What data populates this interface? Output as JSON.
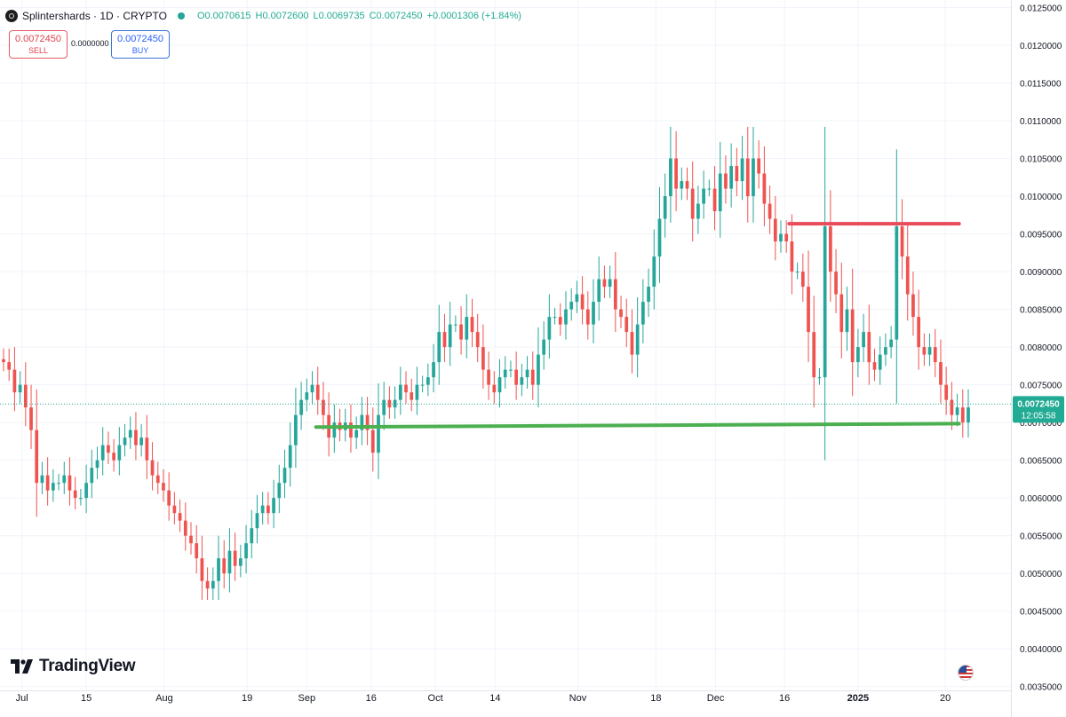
{
  "header": {
    "title": "Splintershards · 1D · CRYPTO",
    "open": "O0.0070615",
    "high": "H0.0072600",
    "low": "L0.0069735",
    "close": "C0.0072450",
    "change": "+0.0001306 (+1.84%)"
  },
  "trade": {
    "sell_price": "0.0072450",
    "sell_label": "SELL",
    "spread": "0.0000000",
    "buy_price": "0.0072450",
    "buy_label": "BUY"
  },
  "price_tag": {
    "price": "0.0072450",
    "countdown": "12:05:58"
  },
  "branding": {
    "logo_text": "TradingView",
    "flag_icon": "us-flag-icon"
  },
  "colors": {
    "up": "#26a69a",
    "down": "#ef5350",
    "resistance": "#e84c5a",
    "support": "#4caf50",
    "tag": "#22ab94"
  },
  "chart_data": {
    "type": "candlestick",
    "ylim": [
      0.00345,
      0.0126
    ],
    "y_ticks": [
      "0.0035000",
      "0.0040000",
      "0.0045000",
      "0.0050000",
      "0.0055000",
      "0.0060000",
      "0.0065000",
      "0.0070000",
      "0.0075000",
      "0.0080000",
      "0.0085000",
      "0.0090000",
      "0.0095000",
      "0.0100000",
      "0.0105000",
      "0.0110000",
      "0.0115000",
      "0.0120000",
      "0.0125000"
    ],
    "x_ticks": [
      {
        "label": "Jul",
        "day": 4
      },
      {
        "label": "15",
        "day": 18
      },
      {
        "label": "Aug",
        "day": 35
      },
      {
        "label": "19",
        "day": 53
      },
      {
        "label": "Sep",
        "day": 66
      },
      {
        "label": "16",
        "day": 80
      },
      {
        "label": "Oct",
        "day": 94
      },
      {
        "label": "14",
        "day": 107
      },
      {
        "label": "Nov",
        "day": 125
      },
      {
        "label": "18",
        "day": 142
      },
      {
        "label": "Dec",
        "day": 155
      },
      {
        "label": "16",
        "day": 170
      },
      {
        "label": "2025",
        "day": 186
      },
      {
        "label": "20",
        "day": 205
      }
    ],
    "days_total": 211,
    "close": [
      0.0078,
      0.0077,
      0.0074,
      0.0075,
      0.0072,
      0.0069,
      0.0062,
      0.0063,
      0.0061,
      0.0062,
      0.0062,
      0.0063,
      0.0061,
      0.006,
      0.006,
      0.0062,
      0.0064,
      0.0065,
      0.0067,
      0.0066,
      0.0065,
      0.0067,
      0.0068,
      0.0069,
      0.0067,
      0.0068,
      0.0065,
      0.0063,
      0.0062,
      0.0061,
      0.0059,
      0.0058,
      0.0057,
      0.0055,
      0.0054,
      0.0052,
      0.0049,
      0.0048,
      0.0049,
      0.0052,
      0.005,
      0.0053,
      0.0051,
      0.0052,
      0.0054,
      0.0056,
      0.0058,
      0.0059,
      0.0058,
      0.006,
      0.0062,
      0.0064,
      0.0067,
      0.0071,
      0.0073,
      0.0074,
      0.0075,
      0.0073,
      0.0071,
      0.0068,
      0.007,
      0.0069,
      0.007,
      0.0068,
      0.0069,
      0.0071,
      0.0069,
      0.0066,
      0.0071,
      0.0073,
      0.0072,
      0.0073,
      0.0075,
      0.0074,
      0.0073,
      0.0075,
      0.0075,
      0.0076,
      0.0078,
      0.0082,
      0.008,
      0.0083,
      0.0083,
      0.0081,
      0.0084,
      0.0082,
      0.008,
      0.0077,
      0.0075,
      0.0074,
      0.0076,
      0.0077,
      0.0077,
      0.0075,
      0.0076,
      0.0077,
      0.0075,
      0.0079,
      0.0081,
      0.0084,
      0.0084,
      0.0083,
      0.0085,
      0.0086,
      0.0087,
      0.0085,
      0.0083,
      0.0086,
      0.0089,
      0.0088,
      0.0089,
      0.0085,
      0.0084,
      0.0082,
      0.0079,
      0.0083,
      0.0086,
      0.0088,
      0.0092,
      0.0097,
      0.01,
      0.0105,
      0.0101,
      0.0102,
      0.0101,
      0.0097,
      0.0099,
      0.0101,
      0.0101,
      0.0098,
      0.0103,
      0.0101,
      0.0104,
      0.0102,
      0.0105,
      0.01,
      0.0105,
      0.0103,
      0.0099,
      0.0097,
      0.0094,
      0.0095,
      0.0094,
      0.009,
      0.009,
      0.0088,
      0.0082,
      0.0076,
      0.0076,
      0.0096,
      0.009,
      0.0087,
      0.0082,
      0.0085,
      0.0078,
      0.008,
      0.0082,
      0.0078,
      0.0077,
      0.0079,
      0.008,
      0.0081,
      0.0096,
      0.0092,
      0.0087,
      0.0084,
      0.008,
      0.0079,
      0.008,
      0.0078,
      0.0075,
      0.0073,
      0.0071,
      0.0072,
      0.007,
      0.0072
    ],
    "support_line": {
      "from_day": 68,
      "to_day": 208,
      "start": 0.00694,
      "end": 0.006985
    },
    "resistance_line": {
      "from_day": 171,
      "to_day": 208,
      "value": 0.009635
    },
    "last_price_line": 0.007245
  }
}
